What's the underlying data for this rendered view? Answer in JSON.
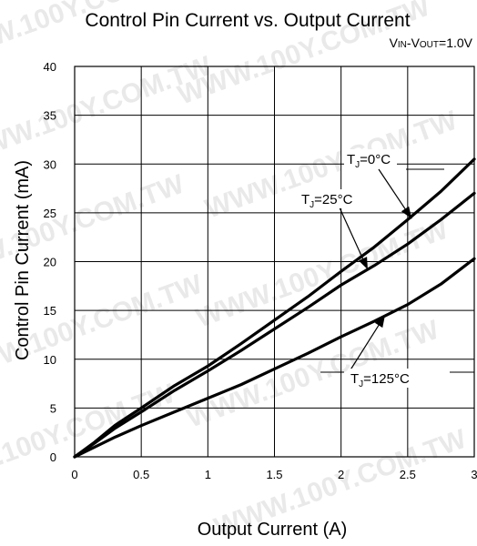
{
  "chart_data": {
    "type": "line",
    "title": "Control Pin Current vs. Output Current",
    "condition": {
      "v1": "V",
      "s1": "IN",
      "sep": "-V",
      "s2": "OUT",
      "rest": "=1.0V"
    },
    "xlabel": "Output Current (A)",
    "ylabel": "Control Pin Current (mA)",
    "xlim": [
      0,
      3
    ],
    "ylim": [
      0,
      40
    ],
    "xticks": [
      0,
      0.5,
      1,
      1.5,
      2,
      2.5,
      3
    ],
    "xtick_labels": [
      "0",
      "0.5",
      "1",
      "1.5",
      "2",
      "2.5",
      "3"
    ],
    "yticks": [
      0,
      5,
      10,
      15,
      20,
      25,
      30,
      35,
      40
    ],
    "ytick_labels": [
      "0",
      "5",
      "10",
      "15",
      "20",
      "25",
      "30",
      "35",
      "40"
    ],
    "grid": true,
    "watermark": "WWW.100Y.COM.TW",
    "series": [
      {
        "name": "T_J=0°C",
        "x": [
          0,
          0.15,
          0.3,
          0.5,
          0.75,
          1.0,
          1.25,
          1.5,
          1.75,
          2.0,
          2.25,
          2.5,
          2.75,
          3.0
        ],
        "y": [
          0,
          1.5,
          3.2,
          5.0,
          7.3,
          9.3,
          11.6,
          14.0,
          16.4,
          19.0,
          21.5,
          24.3,
          27.2,
          30.5
        ]
      },
      {
        "name": "T_J=25°C",
        "x": [
          0,
          0.15,
          0.3,
          0.5,
          0.75,
          1.0,
          1.25,
          1.5,
          1.75,
          2.0,
          2.25,
          2.5,
          2.75,
          3.0
        ],
        "y": [
          0,
          1.4,
          2.9,
          4.6,
          6.8,
          8.8,
          10.9,
          13.1,
          15.3,
          17.6,
          19.6,
          21.8,
          24.3,
          27.0
        ]
      },
      {
        "name": "T_J=125°C",
        "x": [
          0,
          0.15,
          0.3,
          0.5,
          0.75,
          1.0,
          1.25,
          1.5,
          1.75,
          2.0,
          2.25,
          2.5,
          2.75,
          3.0
        ],
        "y": [
          0,
          1.0,
          2.0,
          3.2,
          4.6,
          6.0,
          7.4,
          9.0,
          10.6,
          12.3,
          13.9,
          15.6,
          17.7,
          20.3
        ]
      }
    ],
    "annotations": [
      {
        "series": "T_J=0°C",
        "T": "T",
        "sub": "J",
        "text": "=0°C"
      },
      {
        "series": "T_J=25°C",
        "T": "T",
        "sub": "J",
        "text": "=25°C"
      },
      {
        "series": "T_J=125°C",
        "T": "T",
        "sub": "J",
        "text": "=125°C"
      }
    ]
  }
}
